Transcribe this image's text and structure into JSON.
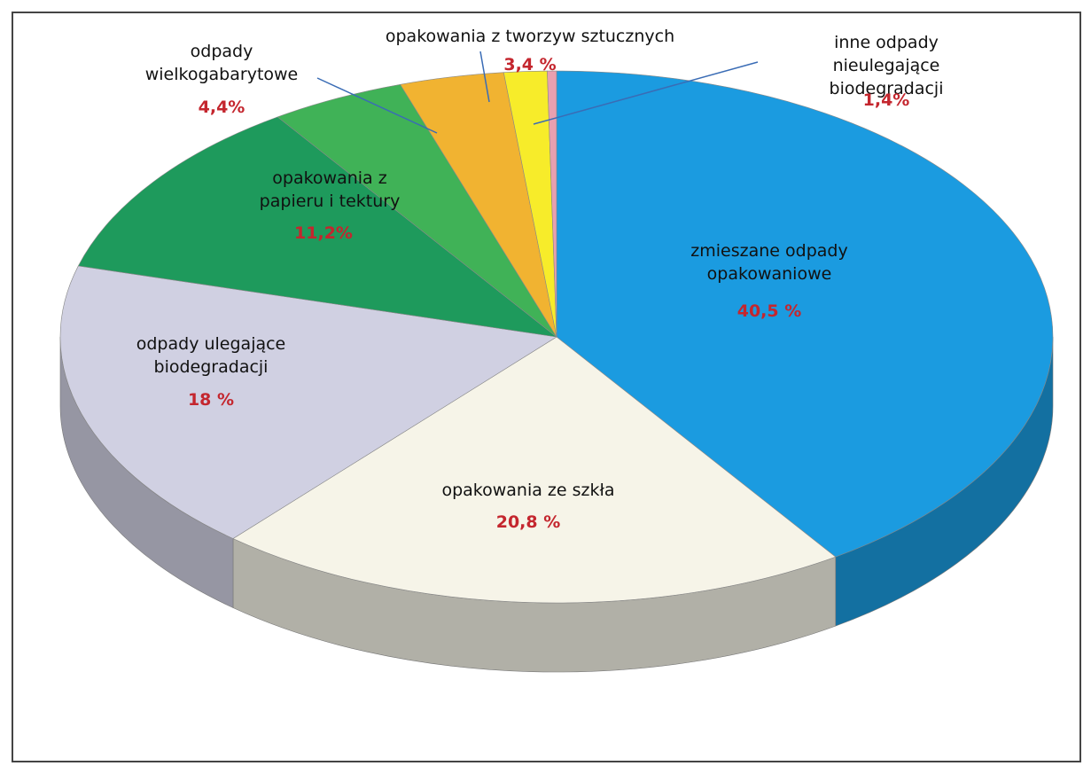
{
  "chart_data": {
    "type": "pie",
    "categories": [
      "zmieszane odpady\nopakowaniowe",
      "opakowania ze szkła",
      "odpady ulegające\nbiodegradacji",
      "opakowania z\npapieru i tektury",
      "odpady\nwielkogabarytowe",
      "opakowania z  tworzyw sztucznych",
      "inne odpady nieulegające\nbiodegradacji",
      null
    ],
    "values": [
      40.5,
      20.8,
      18,
      11.2,
      4.4,
      3.4,
      1.4,
      0.3
    ],
    "value_labels": [
      "40,5 %",
      "20,8 %",
      "18 %",
      "11,2%",
      "4,4%",
      "3,4 %",
      "1,4%",
      null
    ],
    "colors": [
      "#1b9be0",
      "#f6f4e8",
      "#d0d0e2",
      "#1e9a5c",
      "#40b257",
      "#f1b331",
      "#f7ec2a",
      "#e8a0b0"
    ]
  }
}
